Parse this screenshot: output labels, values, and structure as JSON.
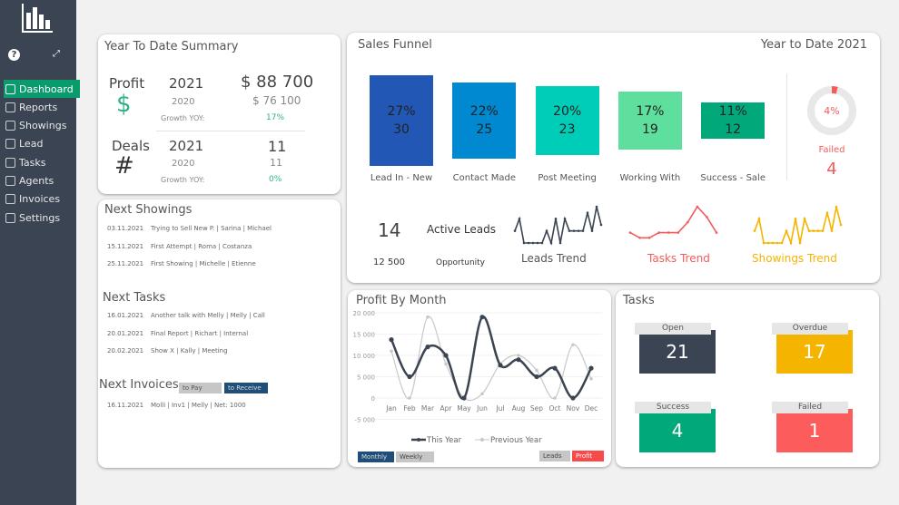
{
  "sidebar": {
    "items": [
      {
        "label": "Dashboard",
        "active": true
      },
      {
        "label": "Reports"
      },
      {
        "label": "Showings"
      },
      {
        "label": "Lead"
      },
      {
        "label": "Tasks"
      },
      {
        "label": "Agents"
      },
      {
        "label": "Invoices"
      },
      {
        "label": "Settings"
      }
    ],
    "help_icon": "question-circle-icon",
    "expand_icon": "expand-icon",
    "logo_icon": "bar-chart-logo"
  },
  "summary": {
    "title": "Year To Date Summary",
    "profit": {
      "label": "Profit",
      "symbol": "$",
      "year": "2021",
      "prev_year": "2020",
      "value": "$ 88 700",
      "prev_value": "$ 76 100",
      "growth_label": "Growth YOY:",
      "growth": "17%"
    },
    "deals": {
      "label": "Deals",
      "symbol": "#",
      "year": "2021",
      "prev_year": "2020",
      "value": "11",
      "prev_value": "11",
      "growth_label": "Growth YOY:",
      "growth": "0%"
    }
  },
  "lists": {
    "showings_title": "Next Showings",
    "showings": [
      {
        "date": "03.11.2021",
        "text": "Trying to Sell New P. | Sarina | Michael"
      },
      {
        "date": "15.11.2021",
        "text": "First Attempt | Roma | Costanza"
      },
      {
        "date": "25.11.2021",
        "text": "First Showing | Michelle | Etienne"
      }
    ],
    "tasks_title": "Next Tasks",
    "tasks": [
      {
        "date": "16.01.2021",
        "text": "Another talk with Melly | Melly | Call"
      },
      {
        "date": "20.01.2021",
        "text": "Final Report | Richart | Internal"
      },
      {
        "date": "20.02.2021",
        "text": "Show X | Kally | Meeting"
      }
    ],
    "invoices_title": "Next Invoices",
    "to_pay": "to Pay",
    "to_receive": "to Receive",
    "invoices": [
      {
        "date": "16.11.2021",
        "text": "Molli | Inv1 | Melly | Net: 1000"
      }
    ]
  },
  "funnel": {
    "title": "Sales Funnel",
    "period": "Year to Date 2021",
    "stages": [
      {
        "label": "Lead In - New",
        "pct": "27%",
        "count": 30,
        "color": "#2357b5"
      },
      {
        "label": "Contact Made",
        "pct": "22%",
        "count": 25,
        "color": "#0088d1"
      },
      {
        "label": "Post Meeting",
        "pct": "20%",
        "count": 23,
        "color": "#00cdb8"
      },
      {
        "label": "Working With",
        "pct": "17%",
        "count": 19,
        "color": "#5fdf9e"
      },
      {
        "label": "Success - Sale",
        "pct": "11%",
        "count": 12,
        "color": "#00a87a"
      }
    ],
    "failed": {
      "pct": "4%",
      "pct_value": 4,
      "label": "Failed",
      "count": "4",
      "color": "#f25c5c"
    },
    "active_leads": "14",
    "active_leads_label": "Active Leads",
    "opportunity": "12 500",
    "opportunity_label": "Opportunity",
    "trends": [
      {
        "label": "Leads Trend",
        "color": "#3b4452",
        "values": [
          2,
          4,
          0,
          0,
          0,
          0,
          0,
          2,
          0,
          4,
          0,
          4,
          2,
          2,
          2,
          2,
          5,
          2,
          6,
          3
        ]
      },
      {
        "label": "Tasks Trend",
        "color": "#f25c5c",
        "values": [
          2,
          1,
          1,
          2,
          2,
          2,
          4,
          7,
          5,
          2
        ]
      },
      {
        "label": "Showings Trend",
        "color": "#f5b400",
        "values": [
          2,
          4,
          0,
          0,
          0,
          0,
          0,
          2,
          0,
          4,
          0,
          4,
          2,
          2,
          2,
          2,
          5,
          2,
          6,
          3
        ]
      }
    ]
  },
  "profit_chart": {
    "title": "Profit By Month",
    "buttons": [
      "Monthly",
      "Weekly"
    ],
    "toggles": [
      "Leads",
      "Profit"
    ],
    "chart_data": {
      "type": "line",
      "categories": [
        "Jan",
        "Feb",
        "Mar",
        "Apr",
        "May",
        "Jun",
        "Jul",
        "Aug",
        "Sep",
        "Oct",
        "Nov",
        "Dec"
      ],
      "ylim": [
        -5000,
        20000
      ],
      "yticks": [
        "20 000",
        "15 000",
        "10 000",
        "5 000",
        "0",
        "-5 000"
      ],
      "series": [
        {
          "name": "This Year",
          "color": "#3b4452",
          "values": [
            13700,
            5000,
            12000,
            10000,
            0,
            19000,
            7700,
            9000,
            5000,
            7000,
            0,
            7000
          ]
        },
        {
          "name": "Previous Year",
          "color": "#c8c8c8",
          "values": [
            11000,
            0,
            19000,
            8000,
            0,
            1000,
            8000,
            10000,
            6500,
            0,
            12500,
            4500
          ]
        }
      ],
      "legend": "bottom"
    }
  },
  "tasks": {
    "title": "Tasks",
    "tiles": [
      {
        "label": "Open",
        "value": "21",
        "color": "#3b4452"
      },
      {
        "label": "Overdue",
        "value": "17",
        "color": "#f5b400"
      },
      {
        "label": "Success",
        "value": "4",
        "color": "#00a87a"
      },
      {
        "label": "Failed",
        "value": "1",
        "color": "#fd5c5c"
      }
    ]
  }
}
